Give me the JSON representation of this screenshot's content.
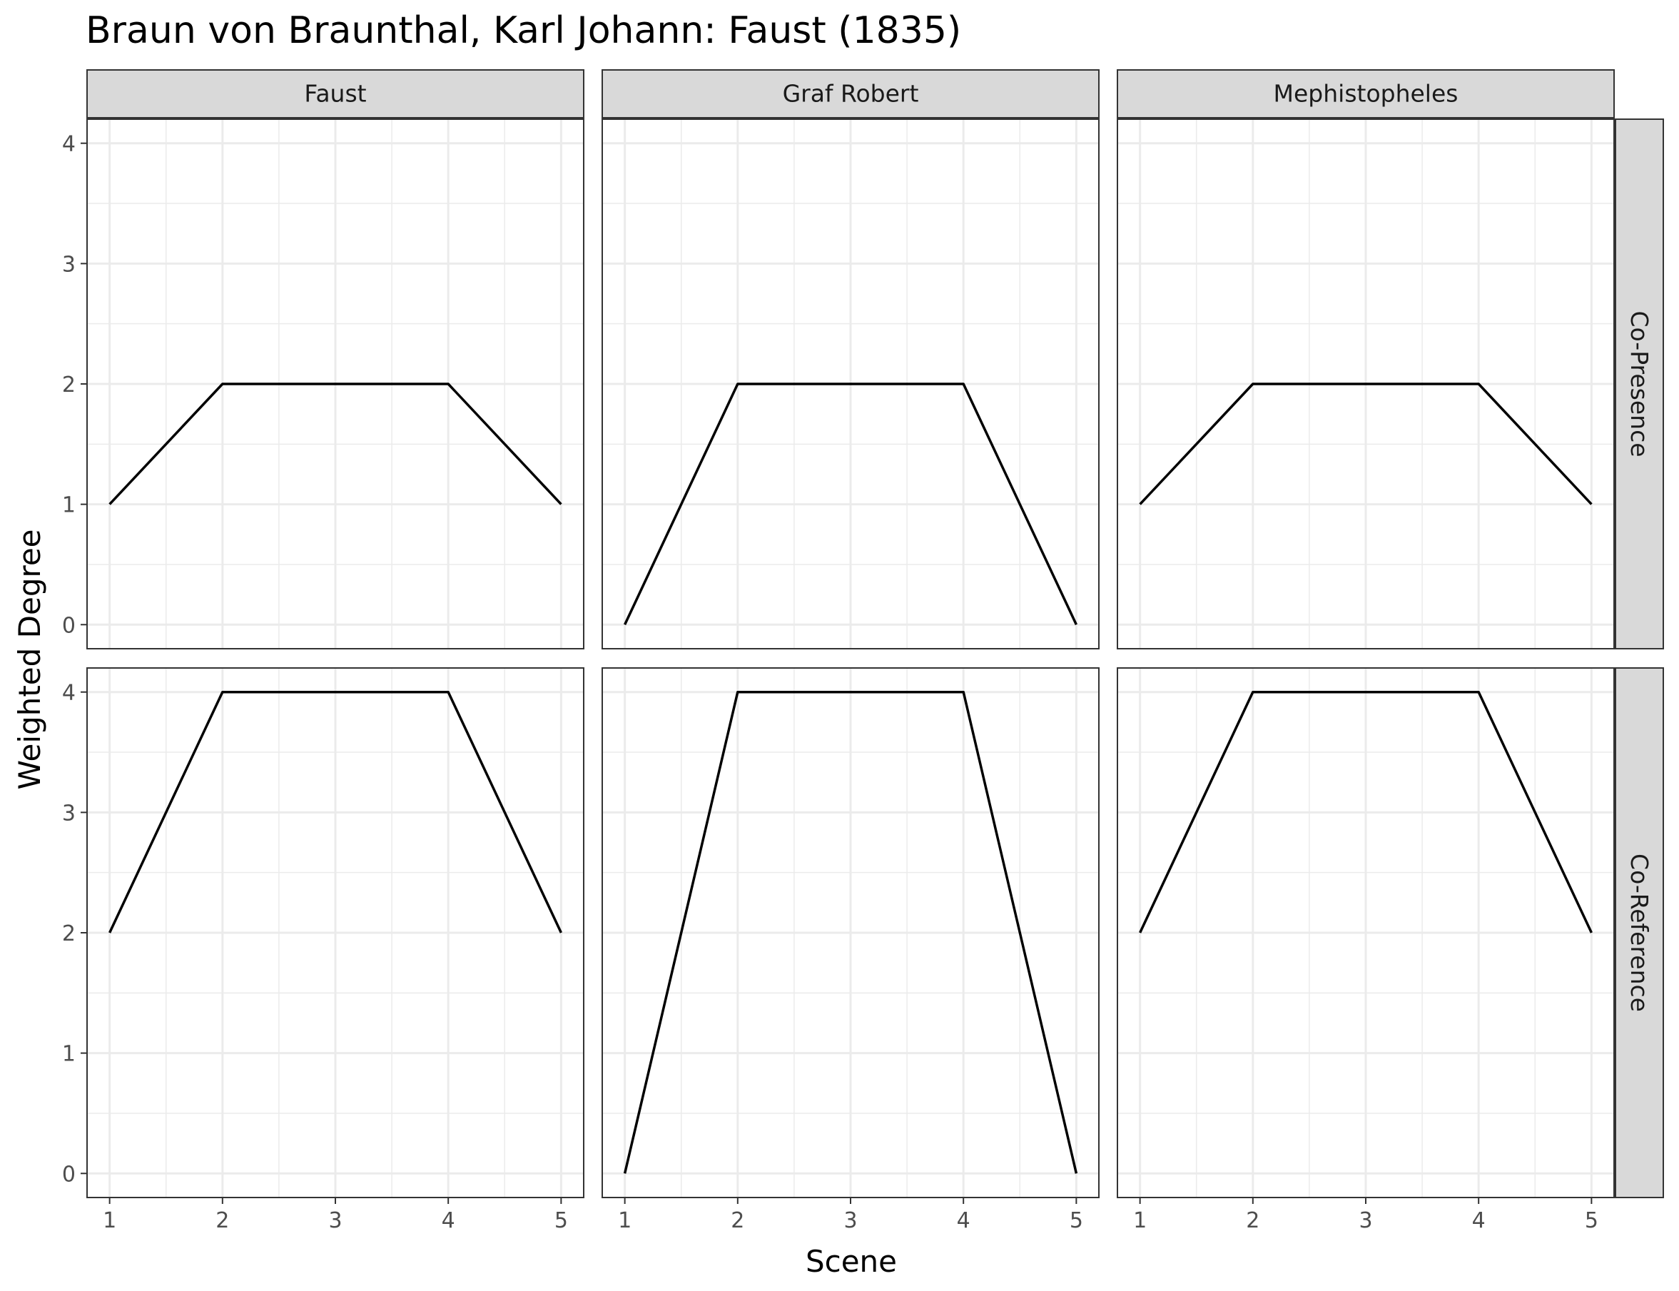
{
  "chart_data": {
    "type": "line",
    "title": "Braun von Braunthal, Karl Johann: Faust (1835)",
    "xlabel": "Scene",
    "ylabel": "Weighted Degree",
    "x_ticks": [
      1,
      2,
      3,
      4,
      5
    ],
    "y_ticks": [
      0,
      1,
      2,
      3,
      4
    ],
    "xlim": [
      0.8,
      5.2
    ],
    "ylim": [
      -0.2,
      4.2
    ],
    "grid": true,
    "facet_columns": [
      "Faust",
      "Graf Robert",
      "Mephistopheles"
    ],
    "facet_rows": [
      "Co-Presence",
      "Co-Reference"
    ],
    "panels": [
      {
        "column": "Faust",
        "row": "Co-Presence",
        "x": [
          1,
          2,
          3,
          4,
          5
        ],
        "y": [
          1,
          2,
          2,
          2,
          1
        ]
      },
      {
        "column": "Graf Robert",
        "row": "Co-Presence",
        "x": [
          1,
          2,
          3,
          4,
          5
        ],
        "y": [
          0,
          2,
          2,
          2,
          0
        ]
      },
      {
        "column": "Mephistopheles",
        "row": "Co-Presence",
        "x": [
          1,
          2,
          3,
          4,
          5
        ],
        "y": [
          1,
          2,
          2,
          2,
          1
        ]
      },
      {
        "column": "Faust",
        "row": "Co-Reference",
        "x": [
          1,
          2,
          3,
          4,
          5
        ],
        "y": [
          2,
          4,
          4,
          4,
          2
        ]
      },
      {
        "column": "Graf Robert",
        "row": "Co-Reference",
        "x": [
          1,
          2,
          3,
          4,
          5
        ],
        "y": [
          0,
          4,
          4,
          4,
          0
        ]
      },
      {
        "column": "Mephistopheles",
        "row": "Co-Reference",
        "x": [
          1,
          2,
          3,
          4,
          5
        ],
        "y": [
          2,
          4,
          4,
          4,
          2
        ]
      }
    ]
  }
}
